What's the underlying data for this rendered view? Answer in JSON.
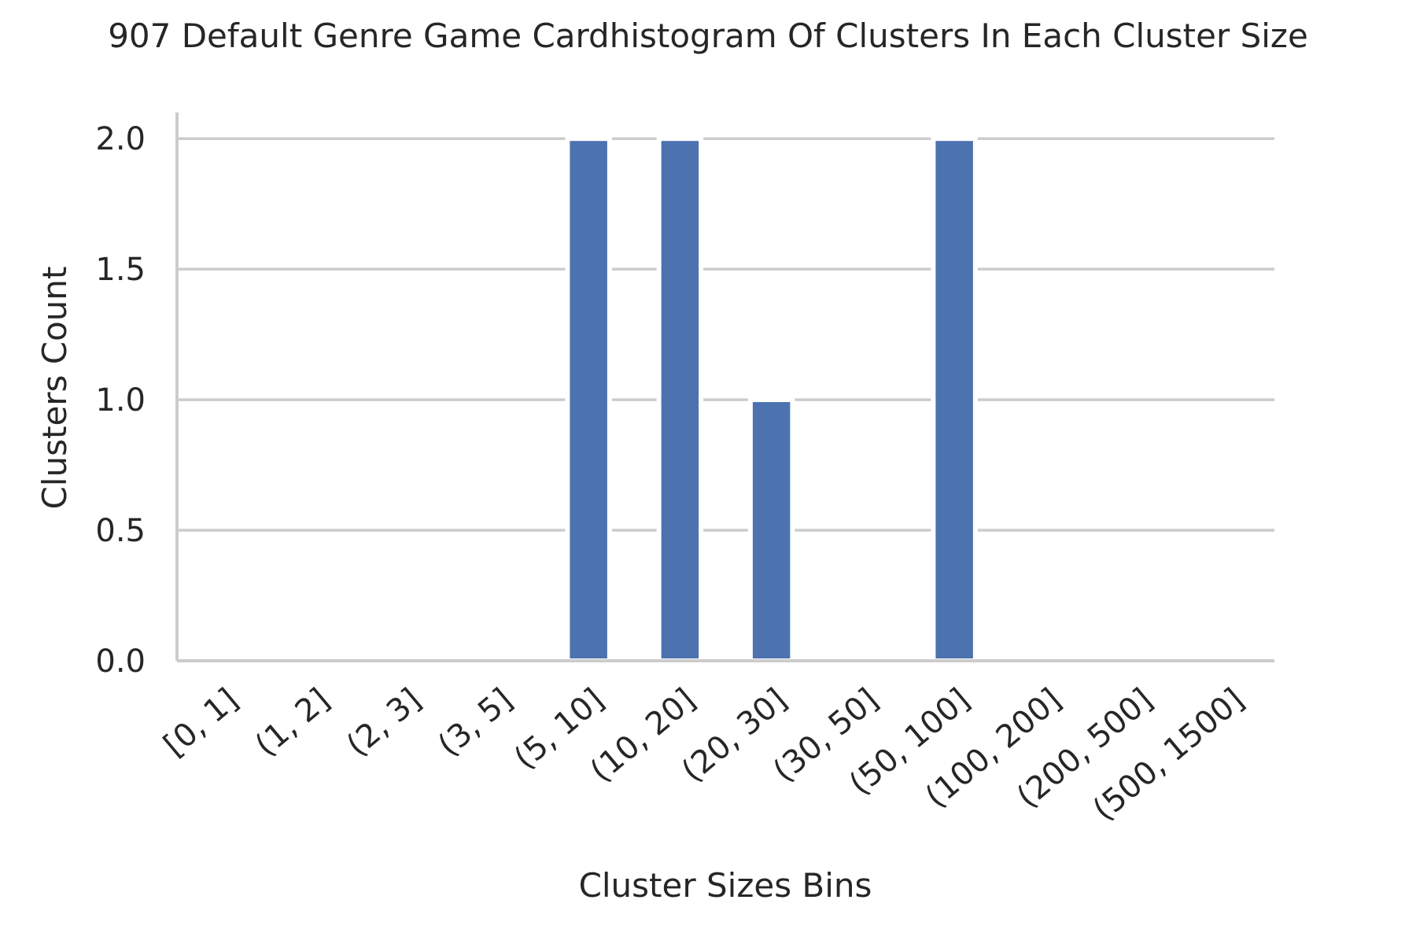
{
  "chart_data": {
    "type": "bar",
    "title": "907 Default Genre Game Cardhistogram Of Clusters In Each Cluster Size",
    "xlabel": "Cluster Sizes Bins",
    "ylabel": "Clusters Count",
    "categories": [
      "[0, 1]",
      "(1, 2]",
      "(2, 3]",
      "(3, 5]",
      "(5, 10]",
      "(10, 20]",
      "(20, 30]",
      "(30, 50]",
      "(50, 100]",
      "(100, 200]",
      "(200, 500]",
      "(500, 1500]"
    ],
    "values": [
      0,
      0,
      0,
      0,
      2,
      2,
      1,
      0,
      2,
      0,
      0,
      0
    ],
    "ylim": [
      0,
      2.1
    ],
    "yticks": [
      "0.0",
      "0.5",
      "1.0",
      "1.5",
      "2.0"
    ],
    "ytick_values": [
      0,
      0.5,
      1.0,
      1.5,
      2.0
    ],
    "grid": "horizontal",
    "bar_color": "#4c72b0",
    "grid_color": "#cccccc",
    "axis_color": "#cccccc"
  }
}
